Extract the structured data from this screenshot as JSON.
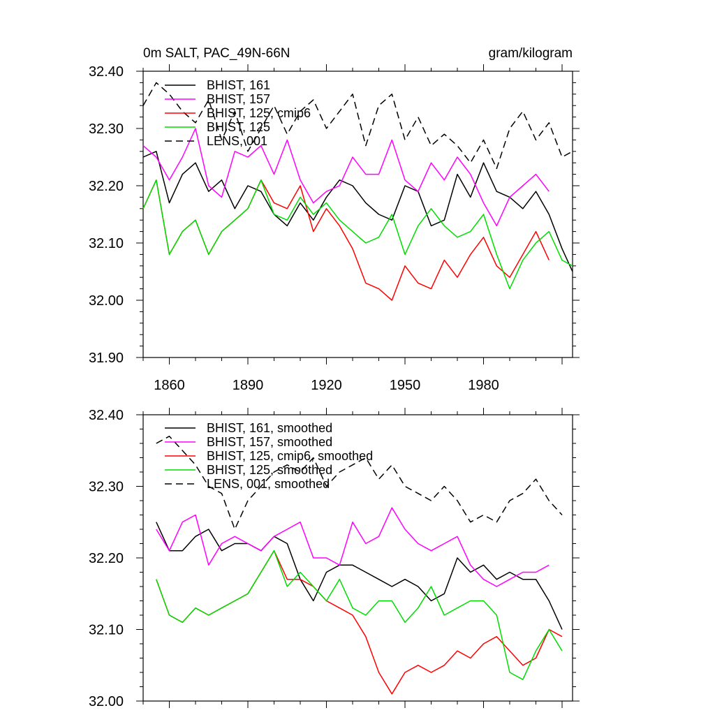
{
  "chart_data": [
    {
      "type": "line",
      "title_left": "0m SALT, PAC_49N-66N",
      "title_right": "gram/kilogram",
      "xlim": [
        1850,
        2014
      ],
      "ylim": [
        31.9,
        32.4
      ],
      "yticks": [
        "31.90",
        "32.00",
        "32.10",
        "32.20",
        "32.30",
        "32.40"
      ],
      "xticks": [
        "1860",
        "1890",
        "1920",
        "1950",
        "1980"
      ],
      "series": [
        {
          "name": "BHIST, 161",
          "color": "#000000",
          "dash": false,
          "x": [
            1850,
            1855,
            1860,
            1865,
            1870,
            1875,
            1880,
            1885,
            1890,
            1895,
            1900,
            1905,
            1910,
            1915,
            1920,
            1925,
            1930,
            1935,
            1940,
            1945,
            1950,
            1955,
            1960,
            1965,
            1970,
            1975,
            1980,
            1985,
            1990,
            1995,
            2000,
            2005,
            2010,
            2014
          ],
          "values": [
            32.25,
            32.26,
            32.17,
            32.22,
            32.24,
            32.19,
            32.21,
            32.16,
            32.2,
            32.19,
            32.15,
            32.13,
            32.17,
            32.14,
            32.18,
            32.21,
            32.2,
            32.17,
            32.15,
            32.14,
            32.2,
            32.19,
            32.13,
            32.14,
            32.22,
            32.18,
            32.24,
            32.19,
            32.18,
            32.16,
            32.19,
            32.15,
            32.09,
            32.05
          ]
        },
        {
          "name": "BHIST, 157",
          "color": "#ff00ff",
          "dash": false,
          "x": [
            1850,
            1855,
            1860,
            1865,
            1870,
            1875,
            1880,
            1885,
            1890,
            1895,
            1900,
            1905,
            1910,
            1915,
            1920,
            1925,
            1930,
            1935,
            1940,
            1945,
            1950,
            1955,
            1960,
            1965,
            1970,
            1975,
            1980,
            1985,
            1990,
            1995,
            2000,
            2005
          ],
          "values": [
            32.27,
            32.25,
            32.21,
            32.25,
            32.3,
            32.2,
            32.18,
            32.26,
            32.25,
            32.27,
            32.22,
            32.28,
            32.21,
            32.17,
            32.19,
            32.2,
            32.25,
            32.22,
            32.22,
            32.28,
            32.21,
            32.19,
            32.24,
            32.21,
            32.25,
            32.22,
            32.17,
            32.13,
            32.18,
            32.2,
            32.22,
            32.19
          ]
        },
        {
          "name": "BHIST, 125, cmip6",
          "color": "#ff0000",
          "dash": false,
          "x": [
            1850,
            1855,
            1860,
            1865,
            1870,
            1875,
            1880,
            1885,
            1890,
            1895,
            1900,
            1905,
            1910,
            1915,
            1920,
            1925,
            1930,
            1935,
            1940,
            1945,
            1950,
            1955,
            1960,
            1965,
            1970,
            1975,
            1980,
            1985,
            1990,
            1995,
            2000,
            2005
          ],
          "values": [
            32.16,
            32.21,
            32.08,
            32.12,
            32.14,
            32.08,
            32.12,
            32.14,
            32.16,
            32.21,
            32.17,
            32.16,
            32.2,
            32.12,
            32.16,
            32.13,
            32.09,
            32.03,
            32.02,
            32.0,
            32.06,
            32.03,
            32.02,
            32.07,
            32.04,
            32.08,
            32.11,
            32.06,
            32.04,
            32.08,
            32.12,
            32.07
          ]
        },
        {
          "name": "BHIST, 125",
          "color": "#00dd00",
          "dash": false,
          "x": [
            1850,
            1855,
            1860,
            1865,
            1870,
            1875,
            1880,
            1885,
            1890,
            1895,
            1900,
            1905,
            1910,
            1915,
            1920,
            1925,
            1930,
            1935,
            1940,
            1945,
            1950,
            1955,
            1960,
            1965,
            1970,
            1975,
            1980,
            1985,
            1990,
            1995,
            2000,
            2005,
            2010,
            2014
          ],
          "values": [
            32.16,
            32.21,
            32.08,
            32.12,
            32.14,
            32.08,
            32.12,
            32.14,
            32.16,
            32.21,
            32.15,
            32.14,
            32.18,
            32.15,
            32.17,
            32.14,
            32.12,
            32.1,
            32.11,
            32.15,
            32.08,
            32.13,
            32.16,
            32.13,
            32.11,
            32.12,
            32.15,
            32.08,
            32.02,
            32.07,
            32.1,
            32.12,
            32.07,
            32.06
          ]
        },
        {
          "name": "LENS, 001",
          "color": "#000000",
          "dash": true,
          "x": [
            1850,
            1855,
            1860,
            1865,
            1870,
            1875,
            1880,
            1885,
            1890,
            1895,
            1900,
            1905,
            1910,
            1915,
            1920,
            1925,
            1930,
            1935,
            1940,
            1945,
            1950,
            1955,
            1960,
            1965,
            1970,
            1975,
            1980,
            1985,
            1990,
            1995,
            2000,
            2005,
            2010,
            2014
          ],
          "values": [
            32.34,
            32.38,
            32.36,
            32.33,
            32.31,
            32.35,
            32.28,
            32.33,
            32.26,
            32.3,
            32.34,
            32.29,
            32.33,
            32.35,
            32.3,
            32.33,
            32.36,
            32.27,
            32.34,
            32.36,
            32.28,
            32.32,
            32.27,
            32.29,
            32.27,
            32.24,
            32.28,
            32.23,
            32.3,
            32.33,
            32.28,
            32.31,
            32.25,
            32.26
          ]
        }
      ]
    },
    {
      "type": "line",
      "xlim": [
        1850,
        2014
      ],
      "ylim": [
        32.0,
        32.4
      ],
      "yticks": [
        "32.00",
        "32.10",
        "32.20",
        "32.30",
        "32.40"
      ],
      "series": [
        {
          "name": "BHIST, 161, smoothed",
          "color": "#000000",
          "dash": false,
          "x": [
            1855,
            1860,
            1865,
            1870,
            1875,
            1880,
            1885,
            1890,
            1895,
            1900,
            1905,
            1910,
            1915,
            1920,
            1925,
            1930,
            1935,
            1940,
            1945,
            1950,
            1955,
            1960,
            1965,
            1970,
            1975,
            1980,
            1985,
            1990,
            1995,
            2000,
            2005,
            2010
          ],
          "values": [
            32.25,
            32.21,
            32.21,
            32.23,
            32.24,
            32.21,
            32.22,
            32.22,
            32.21,
            32.23,
            32.22,
            32.17,
            32.14,
            32.18,
            32.19,
            32.19,
            32.18,
            32.17,
            32.16,
            32.17,
            32.16,
            32.14,
            32.15,
            32.2,
            32.18,
            32.19,
            32.17,
            32.18,
            32.17,
            32.17,
            32.14,
            32.1
          ]
        },
        {
          "name": "BHIST, 157, smoothed",
          "color": "#ff00ff",
          "dash": false,
          "x": [
            1855,
            1860,
            1865,
            1870,
            1875,
            1880,
            1885,
            1890,
            1895,
            1900,
            1905,
            1910,
            1915,
            1920,
            1925,
            1930,
            1935,
            1940,
            1945,
            1950,
            1955,
            1960,
            1965,
            1970,
            1975,
            1980,
            1985,
            1990,
            1995,
            2000,
            2005
          ],
          "values": [
            32.24,
            32.21,
            32.25,
            32.26,
            32.19,
            32.22,
            32.23,
            32.22,
            32.21,
            32.23,
            32.24,
            32.25,
            32.2,
            32.2,
            32.19,
            32.25,
            32.22,
            32.23,
            32.27,
            32.24,
            32.22,
            32.21,
            32.22,
            32.23,
            32.19,
            32.17,
            32.16,
            32.17,
            32.18,
            32.18,
            32.19
          ]
        },
        {
          "name": "BHIST, 125, cmip6, smoothed",
          "color": "#ff0000",
          "dash": false,
          "x": [
            1855,
            1860,
            1865,
            1870,
            1875,
            1880,
            1885,
            1890,
            1895,
            1900,
            1905,
            1910,
            1915,
            1920,
            1925,
            1930,
            1935,
            1940,
            1945,
            1950,
            1955,
            1960,
            1965,
            1970,
            1975,
            1980,
            1985,
            1990,
            1995,
            2000,
            2005,
            2010
          ],
          "values": [
            32.17,
            32.12,
            32.11,
            32.13,
            32.12,
            32.13,
            32.14,
            32.15,
            32.18,
            32.21,
            32.17,
            32.17,
            32.16,
            32.14,
            32.13,
            32.12,
            32.09,
            32.04,
            32.01,
            32.04,
            32.05,
            32.04,
            32.05,
            32.07,
            32.06,
            32.08,
            32.09,
            32.07,
            32.05,
            32.06,
            32.1,
            32.09
          ]
        },
        {
          "name": "BHIST, 125, smoothed",
          "color": "#00dd00",
          "dash": false,
          "x": [
            1855,
            1860,
            1865,
            1870,
            1875,
            1880,
            1885,
            1890,
            1895,
            1900,
            1905,
            1910,
            1915,
            1920,
            1925,
            1930,
            1935,
            1940,
            1945,
            1950,
            1955,
            1960,
            1965,
            1970,
            1975,
            1980,
            1985,
            1990,
            1995,
            2000,
            2005,
            2010
          ],
          "values": [
            32.17,
            32.12,
            32.11,
            32.13,
            32.12,
            32.13,
            32.14,
            32.15,
            32.18,
            32.21,
            32.16,
            32.18,
            32.16,
            32.14,
            32.17,
            32.13,
            32.12,
            32.14,
            32.14,
            32.11,
            32.13,
            32.16,
            32.12,
            32.13,
            32.14,
            32.14,
            32.12,
            32.04,
            32.03,
            32.07,
            32.1,
            32.07
          ]
        },
        {
          "name": "LENS, 001, smoothed",
          "color": "#000000",
          "dash": true,
          "x": [
            1855,
            1860,
            1865,
            1870,
            1875,
            1880,
            1885,
            1890,
            1895,
            1900,
            1905,
            1910,
            1915,
            1920,
            1925,
            1930,
            1935,
            1940,
            1945,
            1950,
            1955,
            1960,
            1965,
            1970,
            1975,
            1980,
            1985,
            1990,
            1995,
            2000,
            2005,
            2010
          ],
          "values": [
            32.36,
            32.37,
            32.35,
            32.33,
            32.3,
            32.29,
            32.24,
            32.28,
            32.3,
            32.32,
            32.33,
            32.32,
            32.34,
            32.3,
            32.32,
            32.33,
            32.34,
            32.31,
            32.33,
            32.3,
            32.29,
            32.28,
            32.3,
            32.28,
            32.25,
            32.26,
            32.25,
            32.28,
            32.29,
            32.31,
            32.28,
            32.26
          ]
        }
      ]
    }
  ]
}
